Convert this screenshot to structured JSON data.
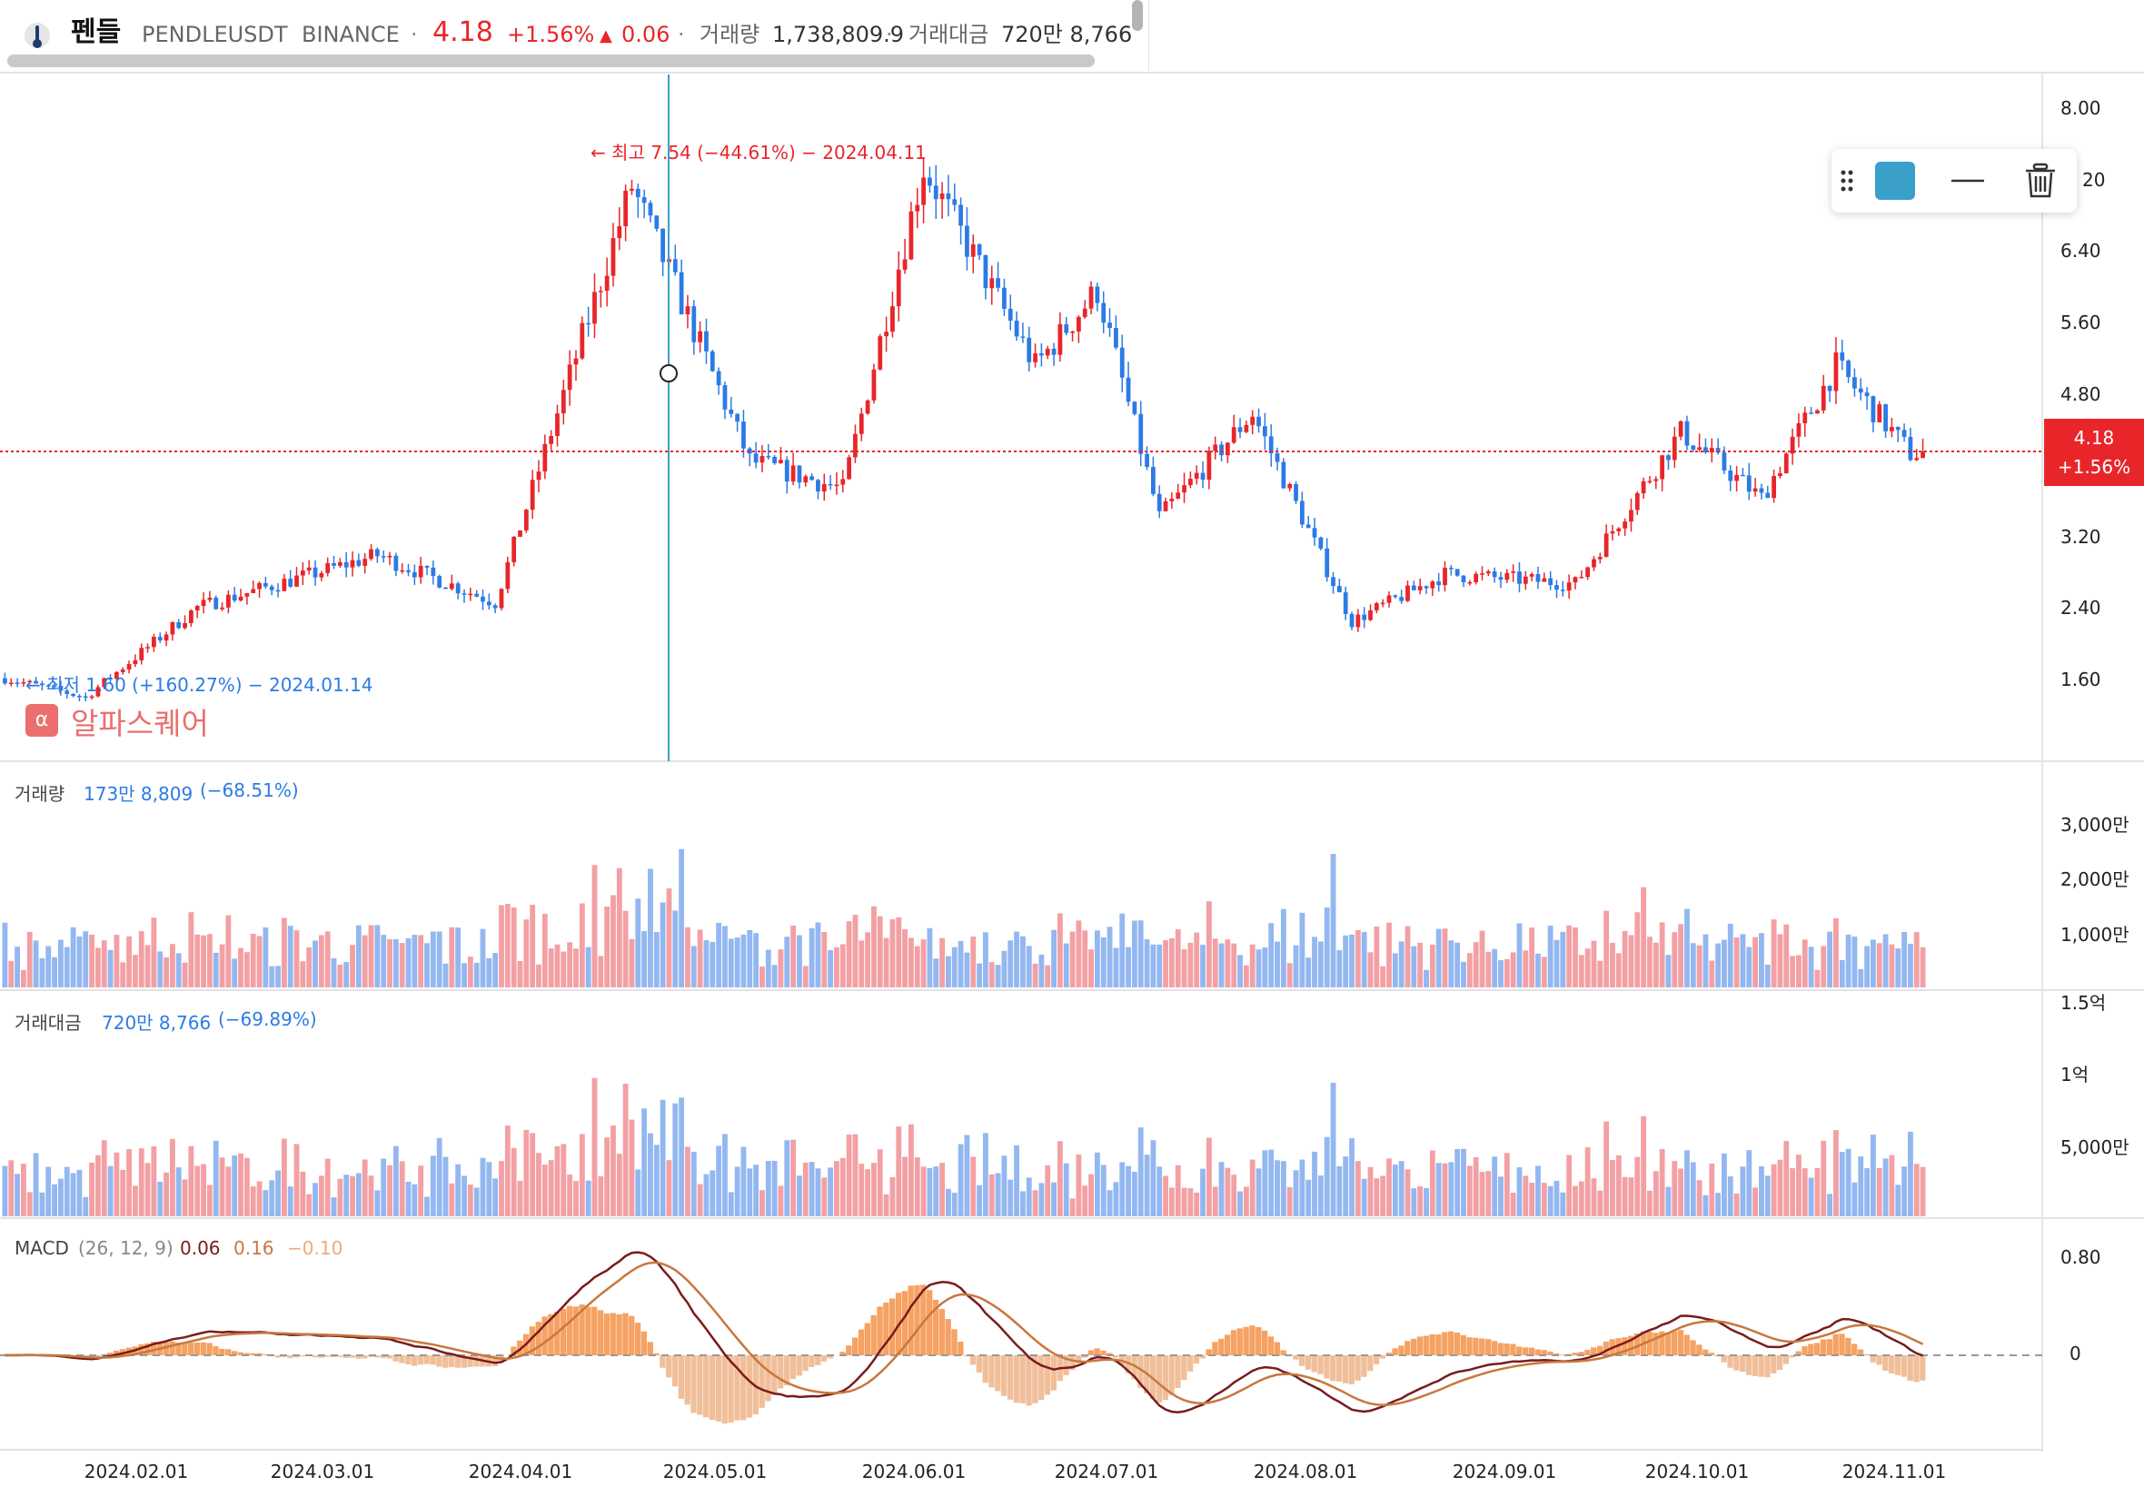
{
  "header": {
    "coin_name": "펜들",
    "ticker": "PENDLEUSDT",
    "exchange": "BINANCE",
    "price": "4.18",
    "change_pct": "+1.56%",
    "change_abs": "0.06",
    "volume_label": "거래량",
    "volume_value": "1,738,809.9",
    "amount_label": "거래대금",
    "amount_value": "720만 8,766"
  },
  "annotations": {
    "high": "← 최고 7.54 (−44.61%) − 2024.04.11",
    "low": "← 최저 1.60 (+160.27%) − 2024.01.14"
  },
  "watermark": "알파스퀘어",
  "watermark_icon": "alpha-logo-icon",
  "current_price_tag": {
    "price": "4.18",
    "change": "+1.56%"
  },
  "toolbar": {
    "color_swatch": "#3a9fc9",
    "icons": [
      "drag-handle-icon",
      "line-style-icon",
      "trash-icon"
    ]
  },
  "price_axis": [
    "8.00",
    "20",
    "6.40",
    "5.60",
    "4.80",
    "3.20",
    "2.40",
    "1.60"
  ],
  "volume_panel": {
    "title": "거래량",
    "value": "173만 8,809",
    "change": "(−68.51%)",
    "axis": [
      "3,000만",
      "2,000만",
      "1,000만"
    ]
  },
  "amount_panel": {
    "title": "거래대금",
    "value": "720만 8,766",
    "change": "(−69.89%)",
    "axis": [
      "1.5억",
      "1억",
      "5,000만"
    ]
  },
  "macd_panel": {
    "title": "MACD",
    "params": "(26, 12, 9)",
    "v1": "0.06",
    "v2": "0.16",
    "v3": "−0.10",
    "axis": [
      "0.80",
      "0"
    ]
  },
  "x_axis": [
    "2024.02.01",
    "2024.03.01",
    "2024.04.01",
    "2024.05.01",
    "2024.06.01",
    "2024.07.01",
    "2024.08.01",
    "2024.09.01",
    "2024.10.01",
    "2024.11.01"
  ],
  "colors": {
    "up": "#e8262a",
    "down": "#2c7be5",
    "up_vol": "#f3a0a4",
    "down_vol": "#93b7f0",
    "macd": "#7a1b1b",
    "signal": "#c8773e",
    "hist_pos": "#f5a263",
    "hist_neg": "#f0bf9a",
    "crosshair": "#3a9fc9"
  },
  "chart_data": {
    "type": "candlestick",
    "series_anchors": {
      "dates": [
        "2024.01.01",
        "2024.01.14",
        "2024.02.01",
        "2024.03.01",
        "2024.03.20",
        "2024.04.11",
        "2024.04.30",
        "2024.05.15",
        "2024.05.28",
        "2024.06.15",
        "2024.06.25",
        "2024.07.05",
        "2024.07.20",
        "2024.08.05",
        "2024.08.20",
        "2024.09.10",
        "2024.09.27",
        "2024.10.10",
        "2024.10.22",
        "2024.11.03"
      ],
      "close": [
        1.8,
        1.6,
        2.55,
        3.1,
        2.6,
        7.0,
        4.1,
        3.8,
        7.2,
        5.1,
        5.9,
        3.5,
        4.6,
        2.4,
        2.9,
        2.8,
        4.4,
        3.7,
        5.1,
        4.18
      ]
    },
    "y_range": [
      1.0,
      8.2
    ],
    "volume_peak": "3,000만+",
    "macd_range": [
      -0.6,
      0.9
    ]
  }
}
